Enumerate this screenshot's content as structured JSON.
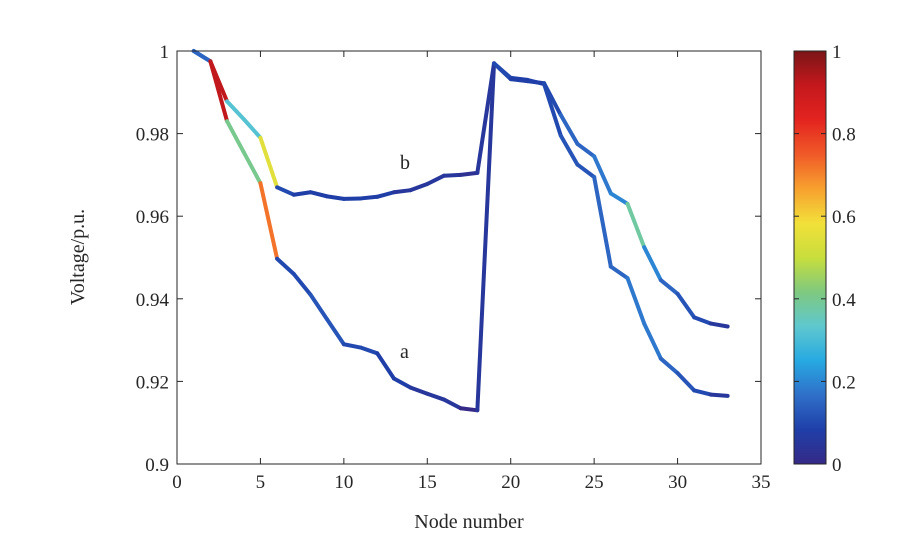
{
  "chart_data": {
    "type": "line",
    "title": "",
    "xlabel": "Node number",
    "ylabel": "Voltage/p.u.",
    "xlim": [
      0,
      35
    ],
    "ylim": [
      0.9,
      1.0
    ],
    "xticks": [
      0,
      5,
      10,
      15,
      20,
      25,
      30,
      35
    ],
    "xtick_labels": [
      "0",
      "5",
      "10",
      "15",
      "20",
      "25",
      "30",
      "35"
    ],
    "yticks": [
      0.9,
      0.92,
      0.94,
      0.96,
      0.98,
      1.0
    ],
    "ytick_labels": [
      "0.9",
      "0.92",
      "0.94",
      "0.96",
      "0.98",
      "1"
    ],
    "grid": false,
    "line_colored_by": "colorbar value per segment",
    "colorbar": {
      "range": [
        0,
        1
      ],
      "ticks": [
        0,
        0.2,
        0.4,
        0.6,
        0.8,
        1
      ],
      "tick_labels": [
        "0",
        "0.2",
        "0.4",
        "0.6",
        "0.8",
        "1"
      ],
      "colormap_stops": [
        "#352a87",
        "#1f3fa8",
        "#2f6fc9",
        "#27a9e1",
        "#5fc8cf",
        "#7fc97f",
        "#c8de3c",
        "#f2e03a",
        "#f7a02e",
        "#f05a28",
        "#e3241f",
        "#c4181d",
        "#7a1517"
      ]
    },
    "series": [
      {
        "name": "a",
        "label": "a",
        "x": [
          1,
          2,
          3,
          4,
          5,
          6,
          7,
          8,
          9,
          10,
          11,
          12,
          13,
          14,
          15,
          16,
          17,
          18,
          19,
          20,
          21,
          22,
          23,
          24,
          25,
          26,
          27,
          28,
          29,
          30,
          31,
          32,
          33
        ],
        "values": [
          1.0,
          0.9975,
          0.983,
          0.9755,
          0.968,
          0.9497,
          0.946,
          0.941,
          0.935,
          0.929,
          0.9282,
          0.9268,
          0.9207,
          0.9185,
          0.917,
          0.9156,
          0.9135,
          0.913,
          0.997,
          0.9935,
          0.993,
          0.992,
          0.9795,
          0.9725,
          0.9695,
          0.9478,
          0.945,
          0.934,
          0.9255,
          0.922,
          0.9178,
          0.9168,
          0.9165
        ],
        "segment_colors": [
          0.15,
          0.92,
          0.4,
          0.4,
          0.72,
          0.1,
          0.1,
          0.12,
          0.12,
          0.1,
          0.1,
          0.08,
          0.08,
          0.05,
          0.05,
          0.05,
          0.0,
          0.05,
          0.1,
          0.08,
          0.08,
          0.1,
          0.12,
          0.12,
          0.15,
          0.15,
          0.18,
          0.18,
          0.15,
          0.12,
          0.1,
          0.05
        ]
      },
      {
        "name": "b",
        "label": "b",
        "x": [
          1,
          2,
          3,
          4,
          5,
          6,
          7,
          8,
          9,
          10,
          11,
          12,
          13,
          14,
          15,
          16,
          17,
          18,
          19,
          20,
          21,
          22,
          23,
          24,
          25,
          26,
          27,
          28,
          29,
          30,
          31,
          32,
          33
        ],
        "values": [
          1.0,
          0.9975,
          0.9878,
          0.9835,
          0.979,
          0.967,
          0.9652,
          0.9658,
          0.9648,
          0.9642,
          0.9643,
          0.9647,
          0.9658,
          0.9663,
          0.9678,
          0.9698,
          0.97,
          0.9705,
          0.997,
          0.9932,
          0.9927,
          0.9922,
          0.9845,
          0.9775,
          0.9745,
          0.9655,
          0.963,
          0.9525,
          0.9445,
          0.9412,
          0.9355,
          0.934,
          0.9333
        ],
        "segment_colors": [
          0.15,
          0.92,
          0.32,
          0.32,
          0.55,
          0.1,
          0.08,
          0.08,
          0.08,
          0.08,
          0.08,
          0.08,
          0.05,
          0.05,
          0.05,
          0.05,
          0.03,
          0.05,
          0.1,
          0.08,
          0.08,
          0.1,
          0.15,
          0.15,
          0.18,
          0.2,
          0.38,
          0.2,
          0.15,
          0.12,
          0.1,
          0.05
        ]
      }
    ]
  }
}
